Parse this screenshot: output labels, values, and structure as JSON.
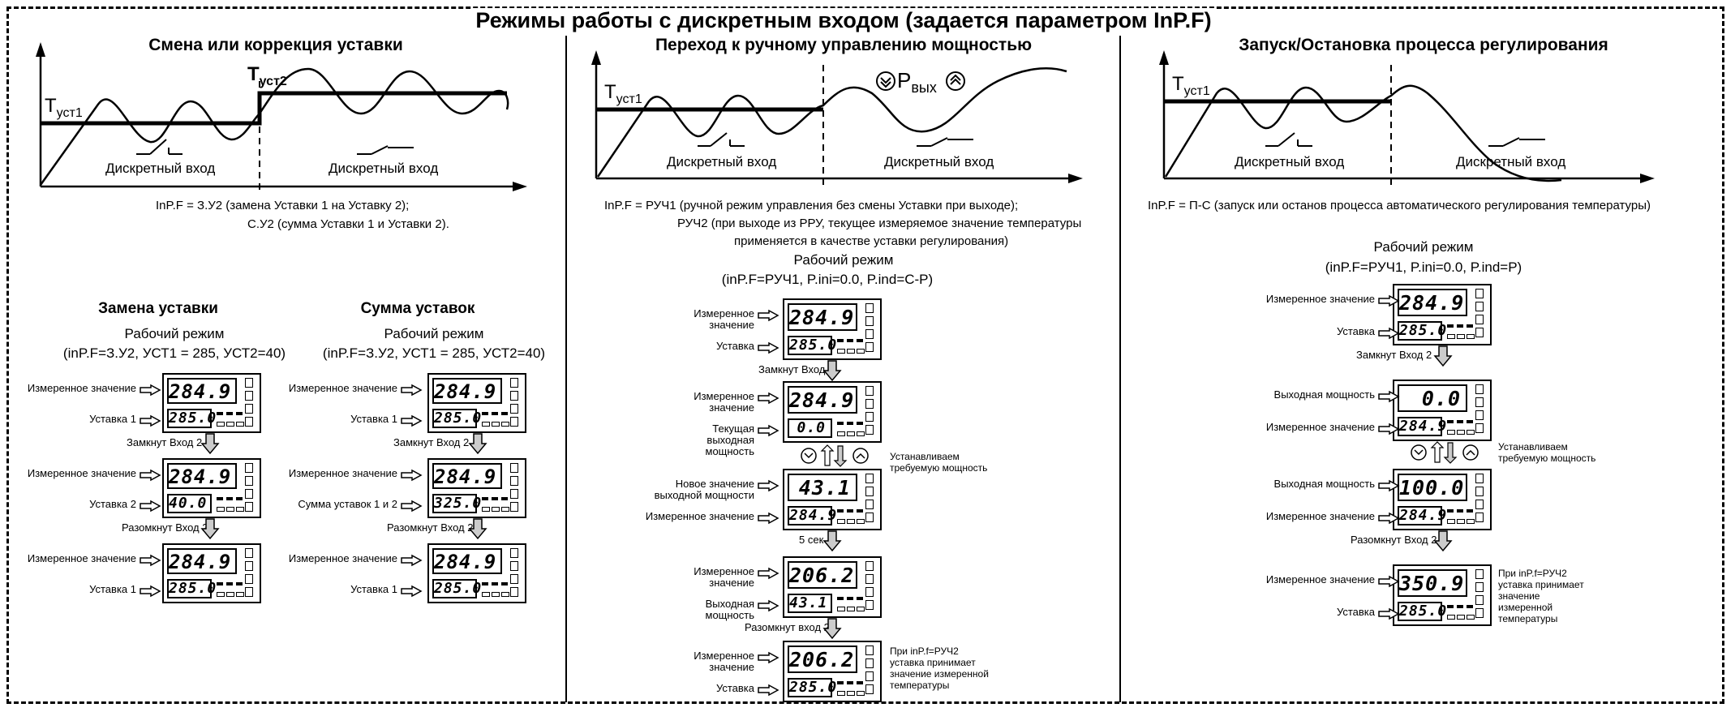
{
  "title": "Режимы работы с дискретным входом (задается параметром InP.F)",
  "panel1": {
    "heading": "Смена или коррекция уставки",
    "t_label_1": "Т",
    "t_sub_1": "уст1",
    "t_label_2": "Т",
    "t_sub_2": "уст2",
    "input_left": "Дискретный вход",
    "input_right": "Дискретный вход",
    "caption_line1": "InP.F = З.У2 (замена Уставки 1 на Уставку 2);",
    "caption_line2": "С.У2 (сумма Уставки 1 и Уставки 2).",
    "replace": {
      "heading": "Замена уставки",
      "mode": "Рабочий режим",
      "params": "(inP.F=З.У2, УСТ1 = 285, УСТ2=40)",
      "step1": {
        "label_top": "Измеренное значение",
        "label_bottom": "Уставка 1",
        "top": "284.9",
        "bottom": "285.0"
      },
      "transition1": "Замкнут Вход 2",
      "step2": {
        "label_top": "Измеренное значение",
        "label_bottom": "Уставка 2",
        "top": "284.9",
        "bottom": "40.0"
      },
      "transition2": "Разомкнут Вход 2",
      "step3": {
        "label_top": "Измеренное значение",
        "label_bottom": "Уставка 1",
        "top": "284.9",
        "bottom": "285.0"
      }
    },
    "sum": {
      "heading": "Сумма уставок",
      "mode": "Рабочий режим",
      "params": "(inP.F=З.У2, УСТ1 = 285, УСТ2=40)",
      "step1": {
        "label_top": "Измеренное значение",
        "label_bottom": "Уставка 1",
        "top": "284.9",
        "bottom": "285.0"
      },
      "transition1": "Замкнут Вход 2",
      "step2": {
        "label_top": "Измеренное значение",
        "label_bottom": "Сумма уставок 1 и 2",
        "top": "284.9",
        "bottom": "325.0"
      },
      "transition2": "Разомкнут Вход 2",
      "step3": {
        "label_top": "Измеренное значение",
        "label_bottom": "Уставка 1",
        "top": "284.9",
        "bottom": "285.0"
      }
    }
  },
  "panel2": {
    "heading": "Переход к ручному управлению мощностью",
    "t_label": "Т",
    "t_sub": "уст1",
    "p_label": "Р",
    "p_sub": "вых",
    "input_left": "Дискретный вход",
    "input_right": "Дискретный вход",
    "caption_line1": "InP.F = РУЧ1 (ручной режим управления без смены Уставки при выходе);",
    "caption_line2": "РУЧ2 (при выходе из РРУ, текущее измеряемое значение температуры",
    "caption_line3": "применяется в качестве уставки регулирования)",
    "mode": "Рабочий режим",
    "params": "(inP.F=РУЧ1, P.ini=0.0, P.ind=С-Р)",
    "step1": {
      "label_top": "Измеренное значение",
      "label_bottom": "Уставка",
      "top": "284.9",
      "bottom": "285.0"
    },
    "transition1": "Замкнут Вход 2",
    "step2": {
      "label_top": "Измеренное значение",
      "label_bottom": "Текущая выходная мощность",
      "top": "284.9",
      "bottom": "0.0"
    },
    "adjust_note": "Устанавливаем требуемую мощность",
    "step3": {
      "label_top": "Новое значение выходной мощности",
      "label_bottom": "Измеренное значение",
      "top": "43.1",
      "bottom": "284.9"
    },
    "transition3": "5 сек",
    "step4": {
      "label_top": "Измеренное значение",
      "label_bottom": "Выходная мощность",
      "top": "206.2",
      "bottom": "43.1"
    },
    "transition4": "Разомкнут вход 2",
    "step5": {
      "label_top": "Измеренное значение",
      "label_bottom": "Уставка",
      "top": "206.2",
      "bottom": "285.0"
    },
    "note_ruch2": "При inP.f=РУЧ2 уставка принимает значение измеренной температуры"
  },
  "panel3": {
    "heading": "Запуск/Остановка процесса регулирования",
    "t_label": "Т",
    "t_sub": "уст1",
    "input_left": "Дискретный вход",
    "input_right": "Дискретный вход",
    "caption": "InP.F = П-С (запуск или останов процесса автоматического регулирования температуры)",
    "mode": "Рабочий режим",
    "params": "(inP.F=РУЧ1, P.ini=0.0, P.ind=Р)",
    "step1": {
      "label_top": "Измеренное значение",
      "label_bottom": "Уставка",
      "top": "284.9",
      "bottom": "285.0"
    },
    "transition1": "Замкнут Вход 2",
    "step2": {
      "label_top": "Выходная мощность",
      "label_bottom": "Измеренное значение",
      "top": "0.0",
      "bottom": "284.9"
    },
    "adjust_note": "Устанавливаем требуемую мощность",
    "step3": {
      "label_top": "Выходная мощность",
      "label_bottom": "Измеренное значение",
      "top": "100.0",
      "bottom": "284.9"
    },
    "transition3": "Разомкнут Вход 2",
    "step4": {
      "label_top": "Измеренное значение",
      "label_bottom": "Уставка",
      "top": "350.9",
      "bottom": "285.0"
    },
    "note_ruch2": "При inP.f=РУЧ2 уставка принимает значение измеренной температуры"
  }
}
